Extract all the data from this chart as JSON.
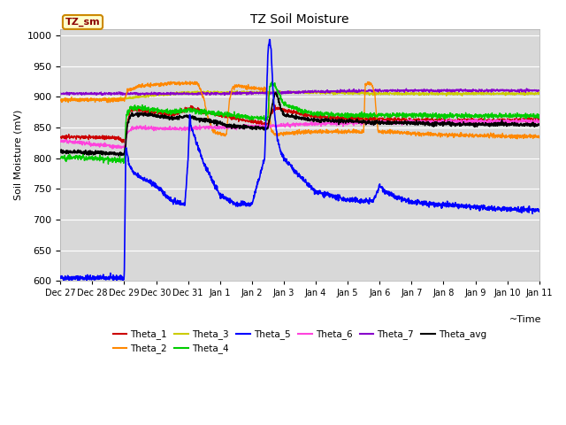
{
  "title": "TZ Soil Moisture",
  "ylabel": "Soil Moisture (mV)",
  "xlabel": "~Time",
  "ylim": [
    600,
    1010
  ],
  "yticks": [
    600,
    650,
    700,
    750,
    800,
    850,
    900,
    950,
    1000
  ],
  "plot_bg_color": "#d8d8d8",
  "fig_bg_color": "#ffffff",
  "legend_label": "TZ_sm",
  "series_colors": {
    "Theta_1": "#cc0000",
    "Theta_2": "#ff8800",
    "Theta_3": "#cccc00",
    "Theta_4": "#00cc00",
    "Theta_5": "#0000ff",
    "Theta_6": "#ff44dd",
    "Theta_7": "#8800cc",
    "Theta_avg": "#000000"
  },
  "x_tick_labels": [
    "Dec 27",
    "Dec 28",
    "Dec 29",
    "Dec 30",
    "Dec 31",
    "Jan 1",
    "Jan 2",
    "Jan 3",
    "Jan 4",
    "Jan 5",
    "Jan 6",
    "Jan 7",
    "Jan 8",
    "Jan 9",
    "Jan 10",
    "Jan 11"
  ]
}
